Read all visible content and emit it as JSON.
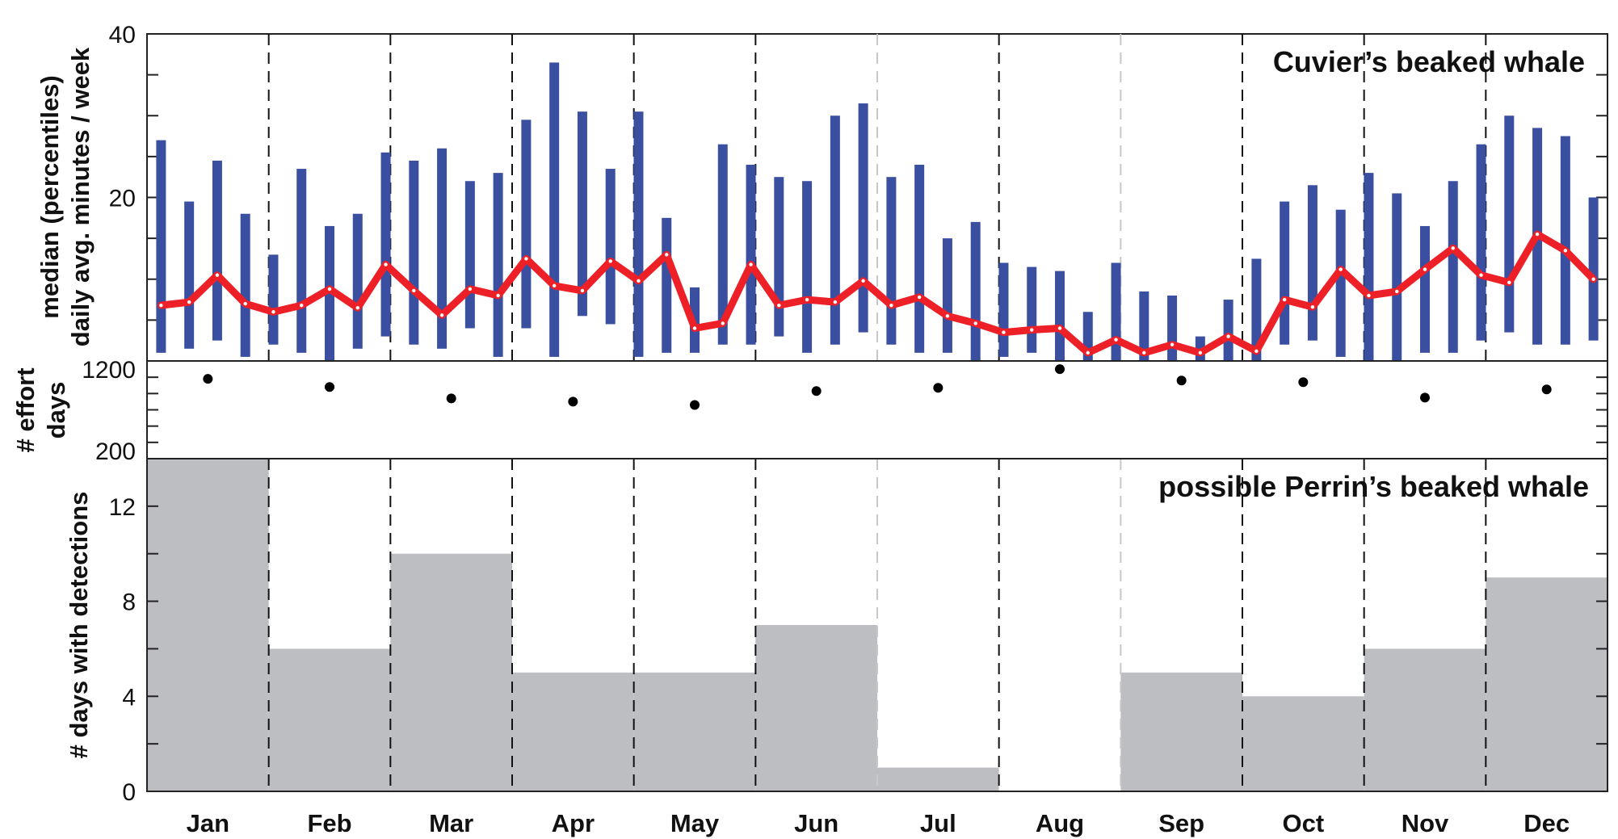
{
  "colors": {
    "bar": "#3a4fa0",
    "median_line": "#ee2027",
    "effort_dot": "#000000",
    "detection_bar": "#bdbec2",
    "divider": "#111111",
    "divider_light": "#c8c8c8"
  },
  "chart_data": [
    {
      "type": "bar",
      "panel": "weekly_presence",
      "species_label": "Cuvier’s beaked whale",
      "ylabel_lines": [
        "median (percentiles)",
        "daily avg. minutes / week"
      ],
      "ylim": [
        0,
        40
      ],
      "yticks": [
        20,
        40
      ],
      "weeks_per_month": 4,
      "series": [
        {
          "name": "percentile range",
          "low": [
            1,
            1.5,
            2.5,
            0.5,
            2,
            1,
            0,
            1.5,
            3,
            2,
            1.5,
            4,
            0.5,
            4,
            0.5,
            5.5,
            4.5,
            0.5,
            1,
            1,
            2,
            2,
            3,
            1,
            2,
            3.5,
            2,
            1,
            1,
            0,
            0.5,
            1,
            0,
            0,
            0,
            0,
            0,
            0,
            0,
            0,
            2,
            2.5,
            0.5,
            0,
            0,
            1,
            1,
            2.5,
            3.5,
            2,
            2,
            2.5
          ],
          "high": [
            27,
            19.5,
            24.5,
            18,
            13,
            23.5,
            16.5,
            18,
            25.5,
            24.5,
            26,
            22,
            23,
            29.5,
            36.5,
            30.5,
            23.5,
            30.5,
            17.5,
            9,
            26.5,
            24,
            22.5,
            22,
            30,
            31.5,
            22.5,
            24,
            15,
            17,
            12,
            11.5,
            11,
            6,
            12,
            8.5,
            8,
            3,
            7.5,
            12.5,
            19.5,
            21.5,
            18.5,
            23,
            20.5,
            16.5,
            22,
            26.5,
            30,
            28.5,
            27.5,
            20
          ]
        },
        {
          "name": "median",
          "values": [
            6.8,
            7.2,
            10.5,
            7,
            6,
            6.8,
            8.8,
            6.5,
            11.8,
            8.6,
            5.6,
            8.8,
            8,
            12.5,
            9.2,
            8.6,
            12.2,
            9.8,
            13,
            4,
            4.6,
            11.8,
            6.8,
            7.5,
            7.2,
            9.8,
            6.8,
            7.8,
            5.5,
            4.6,
            3.5,
            3.8,
            4,
            1,
            2.6,
            1,
            2,
            1,
            3,
            1.2,
            7.5,
            6.6,
            11.2,
            8,
            8.5,
            11.2,
            13.8,
            10.5,
            9.6,
            15.5,
            13.5,
            10
          ]
        }
      ]
    },
    {
      "type": "scatter",
      "panel": "effort",
      "ylabel_lines": [
        "# effort",
        "days"
      ],
      "ylim": [
        100,
        1300
      ],
      "yticks": [
        200,
        1200
      ],
      "categories": [
        "Jan",
        "Feb",
        "Mar",
        "Apr",
        "May",
        "Jun",
        "Jul",
        "Aug",
        "Sep",
        "Oct",
        "Nov",
        "Dec"
      ],
      "values": [
        1080,
        980,
        840,
        800,
        760,
        930,
        970,
        1200,
        1060,
        1040,
        850,
        950
      ]
    },
    {
      "type": "bar",
      "panel": "detections",
      "species_label": "possible Perrin’s beaked whale",
      "ylabel": "# days with detections",
      "ylim": [
        0,
        14
      ],
      "yticks": [
        0,
        4,
        8,
        12
      ],
      "categories": [
        "Jan",
        "Feb",
        "Mar",
        "Apr",
        "May",
        "Jun",
        "Jul",
        "Aug",
        "Sep",
        "Oct",
        "Nov",
        "Dec"
      ],
      "values": [
        14,
        6,
        10,
        5,
        5,
        7,
        1,
        0,
        5,
        4,
        6,
        9
      ]
    }
  ]
}
